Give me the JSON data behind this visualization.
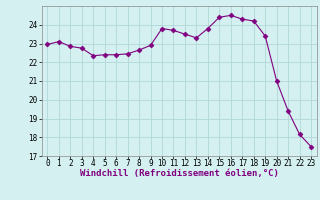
{
  "x": [
    0,
    1,
    2,
    3,
    4,
    5,
    6,
    7,
    8,
    9,
    10,
    11,
    12,
    13,
    14,
    15,
    16,
    17,
    18,
    19,
    20,
    21,
    22,
    23
  ],
  "y": [
    22.95,
    23.1,
    22.85,
    22.75,
    22.35,
    22.4,
    22.4,
    22.45,
    22.65,
    22.9,
    23.8,
    23.7,
    23.5,
    23.3,
    23.8,
    24.4,
    24.5,
    24.3,
    24.2,
    23.4,
    21.0,
    19.4,
    18.15,
    17.5
  ],
  "line_color": "#800080",
  "marker": "D",
  "marker_size": 2.5,
  "background_color": "#d4f0f0",
  "grid_color": "#b0d8d8",
  "xlabel": "Windchill (Refroidissement éolien,°C)",
  "xlim": [
    -0.5,
    23.5
  ],
  "ylim": [
    17,
    25
  ],
  "yticks": [
    17,
    18,
    19,
    20,
    21,
    22,
    23,
    24
  ],
  "xticks": [
    0,
    1,
    2,
    3,
    4,
    5,
    6,
    7,
    8,
    9,
    10,
    11,
    12,
    13,
    14,
    15,
    16,
    17,
    18,
    19,
    20,
    21,
    22,
    23
  ],
  "label_fontsize": 6.5,
  "tick_fontsize": 5.5
}
